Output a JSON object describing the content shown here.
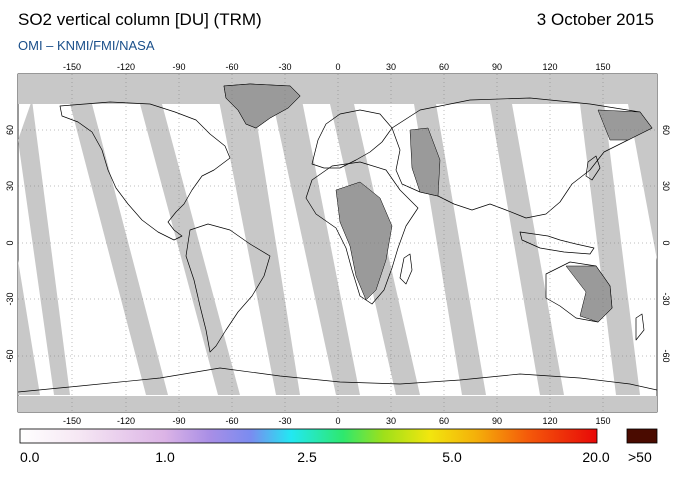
{
  "header": {
    "title": "SO2 vertical column [DU] (TRM)",
    "date": "3 October 2015",
    "credit": "OMI  –  KNMI/FMI/NASA"
  },
  "map": {
    "lon_ticks": [
      "-150",
      "-120",
      "-90",
      "-60",
      "-30",
      "0",
      "30",
      "60",
      "90",
      "120",
      "150"
    ],
    "lat_ticks": [
      "60",
      "30",
      "0",
      "-30",
      "-60"
    ]
  },
  "colorbar": {
    "labels": [
      "0.0",
      "1.0",
      "2.5",
      "5.0",
      "20.0"
    ],
    "over_label": ">50",
    "over_color": "#4a0b00"
  },
  "colors": {
    "no_data": "#c8c8c8",
    "land_no_data": "#9a9a9a",
    "coastline": "#000000",
    "grid": "#8a8a8a"
  }
}
